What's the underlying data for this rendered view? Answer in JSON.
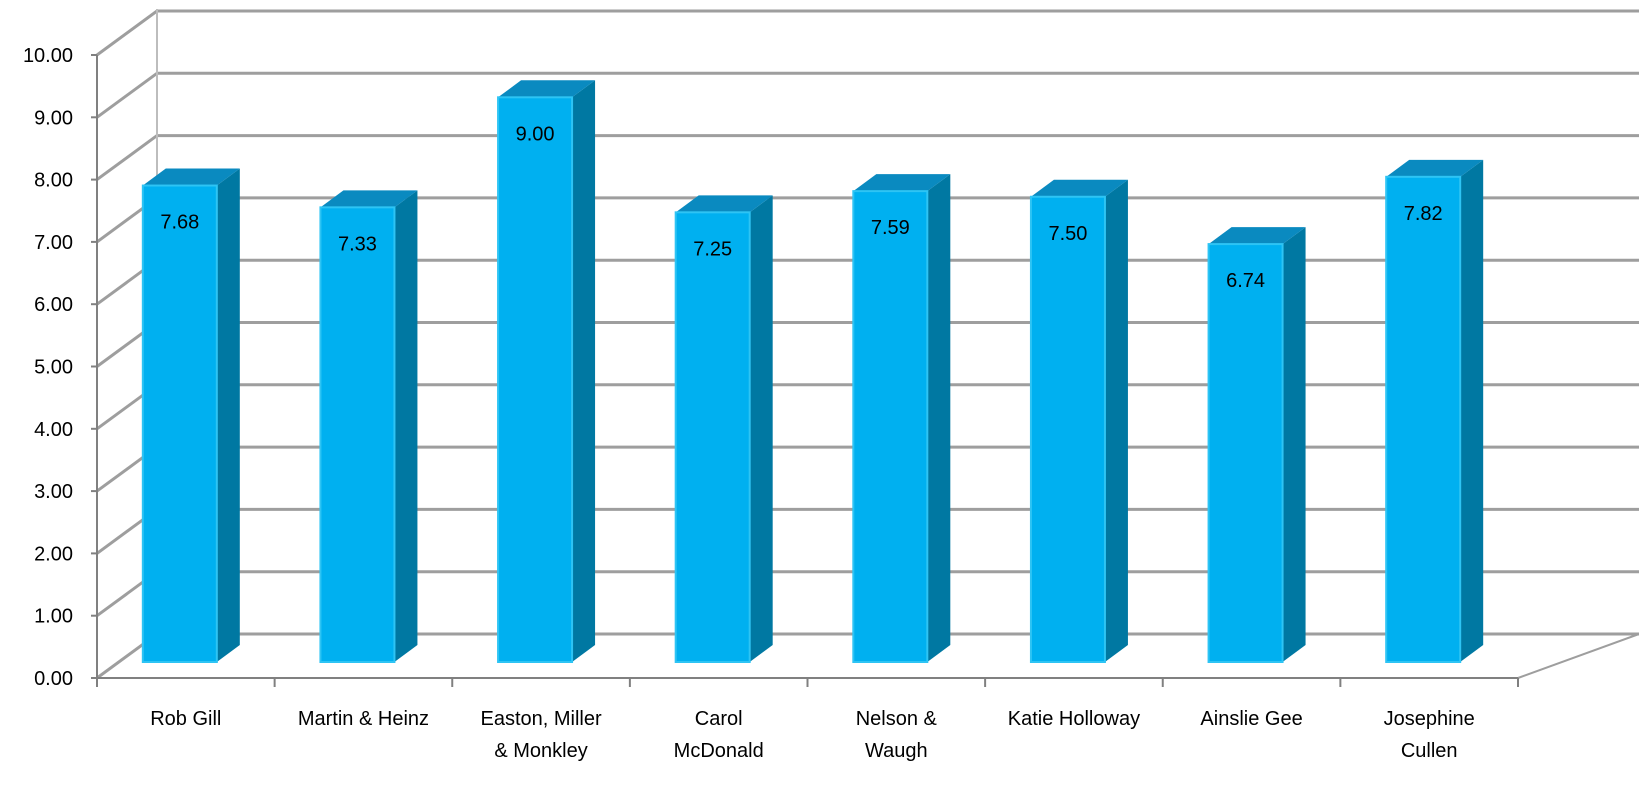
{
  "chart_data": {
    "type": "bar",
    "style": "3d-column",
    "categories": [
      [
        "Rob Gill"
      ],
      [
        "Martin & Heinz"
      ],
      [
        "Easton, Miller",
        "& Monkley"
      ],
      [
        "Carol",
        "McDonald"
      ],
      [
        "Nelson &",
        "Waugh"
      ],
      [
        "Katie Holloway"
      ],
      [
        "Ainslie Gee"
      ],
      [
        "Josephine",
        "Cullen"
      ]
    ],
    "values": [
      7.68,
      7.33,
      9.0,
      7.25,
      7.59,
      7.5,
      6.74,
      7.82
    ],
    "data_labels": [
      "7.68",
      "7.33",
      "9.00",
      "7.25",
      "7.59",
      "7.50",
      "6.74",
      "7.82"
    ],
    "y_ticks": [
      "0.00",
      "1.00",
      "2.00",
      "3.00",
      "4.00",
      "5.00",
      "6.00",
      "7.00",
      "8.00",
      "9.00",
      "10.00"
    ],
    "ylim": [
      0,
      10
    ],
    "title": "",
    "xlabel": "",
    "ylabel": "",
    "grid": true,
    "legend": "none",
    "colors": {
      "bar_front": "#00B0F0",
      "bar_front_edge": "#2EC4F4",
      "bar_side": "#0078A2",
      "bar_top": "#0A8AC0",
      "grid": "#9E9E9E",
      "wall_edge": "#BDBDBD",
      "axis": "#808080"
    }
  }
}
